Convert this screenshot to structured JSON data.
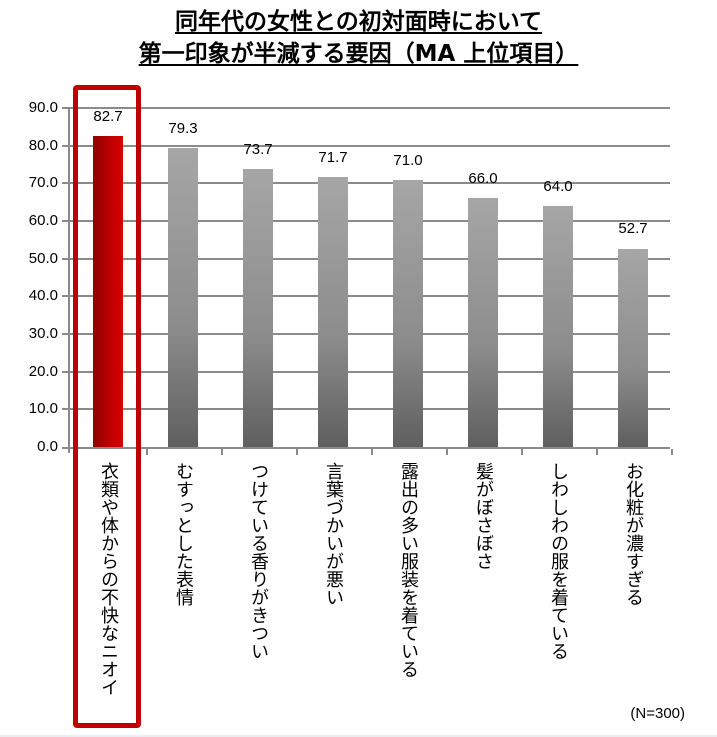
{
  "title": {
    "line1": "同年代の女性との初対面時において",
    "line2": "第一印象が半減する要因（MA 上位項目）"
  },
  "note": "(N=300)",
  "colors": {
    "highlight": "#c00000",
    "bar_gray": "#8c8c8c",
    "grid": "#8a8a8a"
  },
  "y_ticks": [
    "90.0",
    "80.0",
    "70.0",
    "60.0",
    "50.0",
    "40.0",
    "30.0",
    "20.0",
    "10.0",
    "0.0"
  ],
  "bars": [
    {
      "label": "衣類や体からの不快なニオイ",
      "value": "82.7"
    },
    {
      "label": "むすっとした表情",
      "value": "79.3"
    },
    {
      "label": "つけている香りがきつい",
      "value": "73.7"
    },
    {
      "label": "言葉づかいが悪い",
      "value": "71.7"
    },
    {
      "label": "露出の多い服装を着ている",
      "value": "71.0"
    },
    {
      "label": "髪がぼさぼさ",
      "value": "66.0"
    },
    {
      "label": "しわしわの服を着ている",
      "value": "64.0"
    },
    {
      "label": "お化粧が濃すぎる",
      "value": "52.7"
    }
  ],
  "chart_data": {
    "type": "bar",
    "title": "同年代の女性との初対面時において第一印象が半減する要因（MA 上位項目）",
    "categories": [
      "衣類や体からの不快なニオイ",
      "むすっとした表情",
      "つけている香りがきつい",
      "言葉づかいが悪い",
      "露出の多い服装を着ている",
      "髪がぼさぼさ",
      "しわしわの服を着ている",
      "お化粧が濃すぎる"
    ],
    "values": [
      82.7,
      79.3,
      73.7,
      71.7,
      71.0,
      66.0,
      64.0,
      52.7
    ],
    "xlabel": "",
    "ylabel": "",
    "ylim": [
      0,
      90
    ],
    "yticks": [
      0,
      10,
      20,
      30,
      40,
      50,
      60,
      70,
      80,
      90
    ],
    "grid": true,
    "legend": null,
    "annotations": [
      "(N=300)",
      "1st bar highlighted in red with red outline box"
    ],
    "highlighted_category": "衣類や体からの不快なニオイ"
  }
}
